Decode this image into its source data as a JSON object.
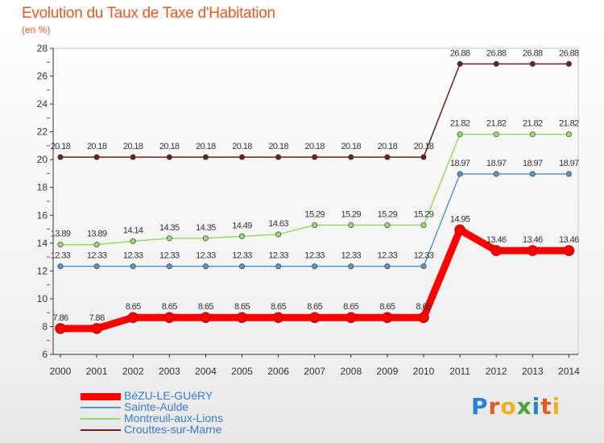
{
  "header": {
    "title": "Evolution du Taux de Taxe d'Habitation",
    "subtitle": "(en %)"
  },
  "brand": {
    "letters": [
      "P",
      "r",
      "o",
      "x",
      "i",
      "t",
      "i"
    ],
    "colors": [
      "#2d7fd1",
      "#e85a23",
      "#f2b01e",
      "#4aa63a",
      "#2d7fd1",
      "#e85a23",
      "#f2b01e"
    ]
  },
  "chart_data": {
    "type": "line",
    "x": [
      "2000",
      "2001",
      "2002",
      "2003",
      "2004",
      "2005",
      "2006",
      "2007",
      "2008",
      "2009",
      "2010",
      "2011",
      "2012",
      "2013",
      "2014"
    ],
    "ylim": [
      6,
      28
    ],
    "yticks": [
      6,
      8,
      10,
      12,
      14,
      16,
      18,
      20,
      22,
      24,
      26,
      28
    ],
    "grid": false,
    "legend_position": "bottom-left",
    "series": [
      {
        "name": "Crouttes-sur-Marne",
        "color": "#6b1f1f",
        "values": [
          20.18,
          20.18,
          20.18,
          20.18,
          20.18,
          20.18,
          20.18,
          20.18,
          20.18,
          20.18,
          20.18,
          26.88,
          26.88,
          26.88,
          26.88
        ],
        "labels": [
          "20.18",
          "20.18",
          "20.18",
          "20.18",
          "20.18",
          "20.18",
          "20.18",
          "20.18",
          "20.18",
          "20.18",
          "20.18",
          "26.88",
          "26.88",
          "26.88",
          "26.88"
        ]
      },
      {
        "name": "Montreuil-aux-Lions",
        "color": "#99d96b",
        "values": [
          13.89,
          13.89,
          14.14,
          14.35,
          14.35,
          14.49,
          14.63,
          15.29,
          15.29,
          15.29,
          15.29,
          21.82,
          21.82,
          21.82,
          21.82
        ],
        "labels": [
          "13.89",
          "13.89",
          "14.14",
          "14.35",
          "14.35",
          "14.49",
          "14.63",
          "15.29",
          "15.29",
          "15.29",
          "15.29",
          "21.82",
          "21.82",
          "21.82",
          "21.82"
        ]
      },
      {
        "name": "Sainte-Aulde",
        "color": "#5b95c7",
        "values": [
          12.33,
          12.33,
          12.33,
          12.33,
          12.33,
          12.33,
          12.33,
          12.33,
          12.33,
          12.33,
          12.33,
          18.97,
          18.97,
          18.97,
          18.97
        ],
        "labels": [
          "12.33",
          "12.33",
          "12.33",
          "12.33",
          "12.33",
          "12.33",
          "12.33",
          "12.33",
          "12.33",
          "12.33",
          "12.33",
          "18.97",
          "18.97",
          "18.97",
          "18.97"
        ]
      },
      {
        "name": "BéZU-LE-GUéRY",
        "color": "#ff0000",
        "values": [
          7.86,
          7.86,
          8.65,
          8.65,
          8.65,
          8.65,
          8.65,
          8.65,
          8.65,
          8.65,
          8.65,
          14.95,
          13.46,
          13.46,
          13.46
        ],
        "labels": [
          "7.86",
          "7.86",
          "8.65",
          "8.65",
          "8.65",
          "8.65",
          "8.65",
          "8.65",
          "8.65",
          "8.65",
          "8.65",
          "14.95",
          "13.46",
          "13.46",
          "13.46"
        ]
      }
    ],
    "legend_order": [
      "BéZU-LE-GUéRY",
      "Sainte-Aulde",
      "Montreuil-aux-Lions",
      "Crouttes-sur-Marne"
    ]
  }
}
